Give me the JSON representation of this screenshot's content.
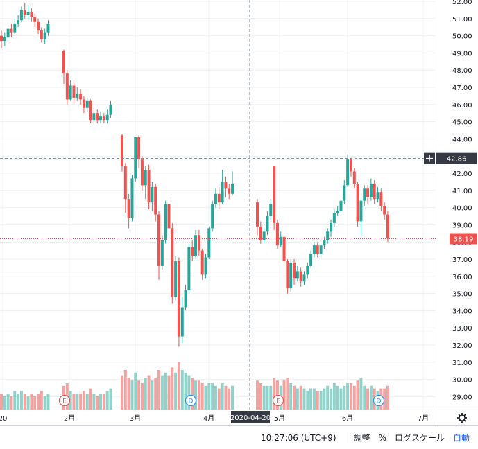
{
  "chart_data": {
    "type": "candlestick",
    "price_axis": {
      "min": 28.5,
      "max": 52.0,
      "ticks": [
        52,
        51,
        50,
        49,
        48,
        47,
        46,
        45,
        44,
        43,
        42,
        41,
        40,
        39,
        38,
        37,
        36,
        35,
        34,
        33,
        32,
        31,
        30,
        29
      ]
    },
    "time_ticks": [
      "20",
      "2月",
      "3月",
      "4月",
      "5月",
      "6月",
      "7月"
    ],
    "crosshair": {
      "date_label": "2020-04-20",
      "price_label": "42.86",
      "price": 42.86
    },
    "last_price": {
      "label": "38.19",
      "value": 38.19
    },
    "events": [
      {
        "label": "E"
      },
      {
        "label": "D"
      },
      {
        "label": "E"
      },
      {
        "label": "D"
      }
    ],
    "colors": {
      "up": "#26a69a",
      "down": "#ef5350",
      "up_volume": "#8fd3cb",
      "down_volume": "#f5a3a1",
      "grid": "#eef0f3"
    },
    "candles": [
      [
        50,
        49.7,
        50.3,
        49.3,
        0.6
      ],
      [
        49.7,
        49.9,
        50.2,
        49.4,
        0.5
      ],
      [
        49.9,
        50.4,
        50.6,
        49.8,
        0.6
      ],
      [
        50.4,
        50.2,
        50.7,
        49.9,
        0.5
      ],
      [
        50.2,
        50.7,
        51,
        50.1,
        0.7
      ],
      [
        50.7,
        50.9,
        51.2,
        50.5,
        0.6
      ],
      [
        50.9,
        51.5,
        51.7,
        50.8,
        0.7
      ],
      [
        51.5,
        51.2,
        51.9,
        51,
        0.6
      ],
      [
        51.2,
        51.4,
        51.8,
        51,
        0.5
      ],
      [
        51.4,
        51.1,
        51.6,
        50.8,
        0.6
      ],
      [
        51.1,
        50.8,
        51.3,
        50.5,
        0.5
      ],
      [
        50.8,
        50.3,
        51,
        50.1,
        0.6
      ],
      [
        50.3,
        49.8,
        50.5,
        49.6,
        0.7
      ],
      [
        49.8,
        50.2,
        50.4,
        49.5,
        0.5
      ],
      [
        50.2,
        50.7,
        50.9,
        50,
        0.6
      ],
      [
        49.1,
        47.8,
        49.2,
        47.2,
        0.9
      ],
      [
        47.8,
        46.3,
        48,
        46,
        1
      ],
      [
        46.3,
        47.1,
        47.4,
        46.2,
        0.7
      ],
      [
        47.1,
        46.4,
        47.3,
        46.1,
        0.6
      ],
      [
        46.4,
        46.6,
        47,
        46.2,
        0.6
      ],
      [
        46.6,
        46.3,
        46.9,
        46,
        0.6
      ],
      [
        46.3,
        45.8,
        46.5,
        45.5,
        0.7
      ],
      [
        45.8,
        46.2,
        46.4,
        45.6,
        0.6
      ],
      [
        46.2,
        45.1,
        46.3,
        44.9,
        0.8
      ],
      [
        45.1,
        45.5,
        45.8,
        44.9,
        0.6
      ],
      [
        45.5,
        45.1,
        45.7,
        44.9,
        0.5
      ],
      [
        45.1,
        45.3,
        45.6,
        44.9,
        0.6
      ],
      [
        45.3,
        45.1,
        45.5,
        44.9,
        0.6
      ],
      [
        45.1,
        45.4,
        45.7,
        44.9,
        0.7
      ],
      [
        45.4,
        46,
        46.2,
        45.2,
        0.8
      ],
      [
        44.2,
        42.4,
        44.3,
        42.1,
        1.3
      ],
      [
        42.4,
        40.5,
        42.6,
        39.7,
        1.5
      ],
      [
        40.5,
        39.4,
        40.8,
        38.8,
        1.2
      ],
      [
        39.4,
        41.7,
        41.9,
        39.2,
        1.1
      ],
      [
        41.7,
        44.1,
        44.1,
        41.5,
        1.4
      ],
      [
        44.1,
        42.8,
        44.2,
        42.3,
        1.1
      ],
      [
        42.8,
        41.3,
        43,
        41,
        1
      ],
      [
        41.3,
        42.2,
        42.4,
        40.5,
        1.2
      ],
      [
        42.2,
        40.3,
        42.5,
        39.9,
        1.3
      ],
      [
        40.3,
        41.2,
        41.5,
        39.8,
        1.1
      ],
      [
        41.2,
        39.6,
        41.4,
        39.2,
        1.2
      ],
      [
        39.6,
        36.6,
        39.8,
        35.8,
        1.5
      ],
      [
        36.6,
        38.1,
        38.4,
        36.4,
        1.3
      ],
      [
        38.1,
        40.2,
        40.4,
        37.9,
        1.4
      ],
      [
        40.2,
        38.8,
        40.6,
        38.5,
        1.3
      ],
      [
        38.8,
        34.8,
        39.1,
        34.4,
        1.6
      ],
      [
        34.8,
        36.9,
        37.2,
        34.6,
        1.4
      ],
      [
        36.9,
        32.5,
        37.1,
        31.9,
        1.8
      ],
      [
        32.5,
        34.2,
        34.8,
        32.1,
        1.5
      ],
      [
        34.2,
        35.2,
        35.5,
        34,
        1.4
      ],
      [
        35.2,
        37.7,
        37.9,
        35.1,
        1.3
      ],
      [
        37.7,
        37.2,
        38.1,
        36.9,
        1.2
      ],
      [
        37.2,
        38.4,
        38.7,
        37.1,
        1.1
      ],
      [
        38.4,
        37.5,
        38.7,
        37.2,
        1.1
      ],
      [
        37.5,
        36.1,
        37.6,
        35.8,
        1
      ],
      [
        36.1,
        37.1,
        37.3,
        35.9,
        0.9
      ],
      [
        37.1,
        38.8,
        38.9,
        37,
        1
      ],
      [
        38.8,
        40.2,
        40.4,
        38.6,
        1
      ],
      [
        40.2,
        40.8,
        41.1,
        40,
        0.9
      ],
      [
        40.8,
        40.3,
        41.2,
        39.9,
        0.8
      ],
      [
        40.3,
        41.5,
        42.2,
        40.2,
        1
      ],
      [
        41.5,
        41.1,
        41.8,
        40.6,
        0.9
      ],
      [
        41.1,
        40.8,
        41.4,
        40.5,
        0.8
      ],
      [
        40.8,
        41.4,
        42.1,
        40.7,
        0.9
      ],
      [
        40.3,
        38.9,
        40.5,
        38.4,
        1.1
      ],
      [
        38.9,
        38.1,
        39.2,
        37.9,
        1
      ],
      [
        38.1,
        38.6,
        38.9,
        37.9,
        0.9
      ],
      [
        38.6,
        39.5,
        39.8,
        38.4,
        0.9
      ],
      [
        39.5,
        40.2,
        40.5,
        39.3,
        0.9
      ],
      [
        42.4,
        39.1,
        42.4,
        38.7,
        1.2
      ],
      [
        39.1,
        37.8,
        39.3,
        37.6,
        1.1
      ],
      [
        37.8,
        38.3,
        38.6,
        37.7,
        0.9
      ],
      [
        38.3,
        36.9,
        38.4,
        36.7,
        1.1
      ],
      [
        36.9,
        35.3,
        37,
        35,
        1.2
      ],
      [
        35.3,
        36.8,
        37,
        35.1,
        1
      ],
      [
        36.8,
        35.9,
        37,
        35.5,
        0.9
      ],
      [
        35.9,
        36.3,
        36.6,
        35.7,
        0.8
      ],
      [
        36.3,
        35.7,
        36.5,
        35.4,
        0.9
      ],
      [
        35.7,
        36.1,
        36.3,
        35.5,
        0.8
      ],
      [
        36.1,
        36.6,
        36.8,
        35.9,
        0.7
      ],
      [
        36.6,
        37.3,
        37.5,
        36.5,
        0.8
      ],
      [
        37.3,
        37.8,
        38,
        37.1,
        0.8
      ],
      [
        37.8,
        37.3,
        38,
        37.1,
        0.7
      ],
      [
        37.3,
        37.8,
        37.9,
        37.2,
        0.7
      ],
      [
        37.8,
        38.1,
        38.3,
        37.6,
        0.8
      ],
      [
        38.1,
        38.6,
        38.8,
        37.9,
        0.9
      ],
      [
        38.6,
        39.1,
        39.3,
        38.3,
        0.8
      ],
      [
        39.1,
        39.7,
        39.9,
        38.9,
        1
      ],
      [
        39.7,
        39.8,
        40.1,
        39.5,
        0.9
      ],
      [
        39.8,
        40.4,
        40.6,
        39.6,
        0.8
      ],
      [
        40.4,
        41.3,
        41.6,
        40.2,
        0.9
      ],
      [
        41.3,
        42.8,
        43.1,
        41.2,
        1
      ],
      [
        42.8,
        42.1,
        42.9,
        41.8,
        1
      ],
      [
        42.1,
        41.4,
        42.3,
        41.1,
        0.9
      ],
      [
        41.4,
        39.2,
        41.5,
        38.9,
        1.1
      ],
      [
        39.2,
        40.4,
        40.6,
        38.4,
        1.2
      ],
      [
        40.4,
        41.1,
        41.3,
        40.1,
        0.9
      ],
      [
        41.1,
        40.6,
        41.3,
        40.2,
        0.8
      ],
      [
        40.6,
        41.4,
        41.7,
        40.4,
        0.9
      ],
      [
        41.4,
        40.5,
        41.6,
        40.2,
        0.8
      ],
      [
        40.5,
        40.9,
        41.2,
        40.3,
        0.7
      ],
      [
        40.9,
        40.1,
        41.1,
        39.8,
        0.8
      ],
      [
        40.1,
        39.6,
        40.3,
        39.3,
        0.8
      ],
      [
        39.6,
        38.2,
        39.8,
        38,
        0.9
      ]
    ]
  },
  "statusbar": {
    "time": "10:27:06 (UTC+9)",
    "adjust": "調整",
    "percent": "%",
    "log_scale": "ログスケール",
    "auto": "自動"
  }
}
